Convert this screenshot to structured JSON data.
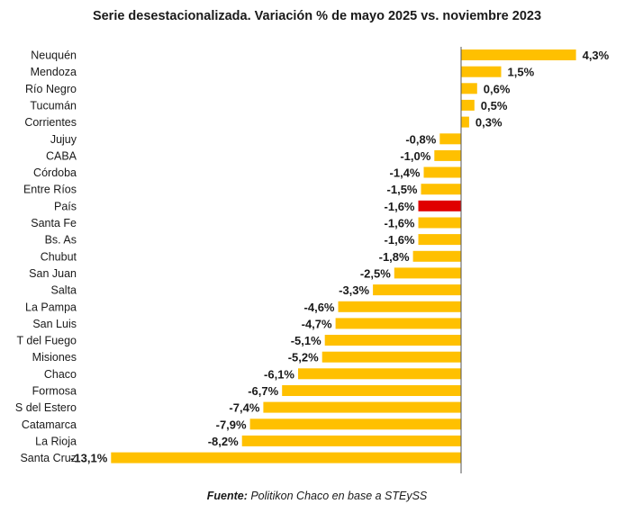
{
  "chart_data": {
    "type": "bar",
    "orientation": "horizontal",
    "title": "Serie desestacionalizada. Variación % de mayo 2025 vs. noviembre 2023",
    "categories": [
      "Neuquén",
      "Mendoza",
      "Río Negro",
      "Tucumán",
      "Corrientes",
      "Jujuy",
      "CABA",
      "Córdoba",
      "Entre Ríos",
      "País",
      "Santa Fe",
      "Bs. As",
      "Chubut",
      "San Juan",
      "Salta",
      "La Pampa",
      "San Luis",
      "T del Fuego",
      "Misiones",
      "Chaco",
      "Formosa",
      "S del Estero",
      "Catamarca",
      "La Rioja",
      "Santa Cruz"
    ],
    "values": [
      4.3,
      1.5,
      0.6,
      0.5,
      0.3,
      -0.8,
      -1.0,
      -1.4,
      -1.5,
      -1.6,
      -1.6,
      -1.6,
      -1.8,
      -2.5,
      -3.3,
      -4.6,
      -4.7,
      -5.1,
      -5.2,
      -6.1,
      -6.7,
      -7.4,
      -7.9,
      -8.2,
      -13.1
    ],
    "data_labels": [
      "4,3%",
      "1,5%",
      "0,6%",
      "0,5%",
      "0,3%",
      "-0,8%",
      "-1,0%",
      "-1,4%",
      "-1,5%",
      "-1,6%",
      "-1,6%",
      "-1,6%",
      "-1,8%",
      "-2,5%",
      "-3,3%",
      "-4,6%",
      "-4,7%",
      "-5,1%",
      "-5,2%",
      "-6,1%",
      "-6,7%",
      "-7,4%",
      "-7,9%",
      "-8,2%",
      "-13,1%"
    ],
    "highlight_category": "País",
    "xlim": [
      -13.1,
      4.3
    ],
    "grid": false,
    "colors": {
      "bar": "#FFC000",
      "highlight": "#E00000",
      "axis": "#555555"
    }
  },
  "source": {
    "label": "Fuente:",
    "text": " Politikon Chaco en base a STEySS"
  }
}
